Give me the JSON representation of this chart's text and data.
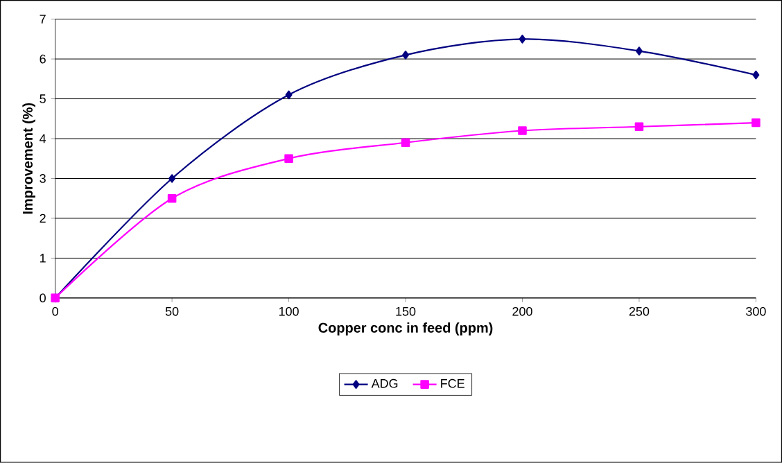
{
  "chart_data": {
    "type": "line",
    "xlabel": "Copper conc in feed (ppm)",
    "ylabel": "Improvement (%)",
    "x": [
      0,
      50,
      100,
      150,
      200,
      250,
      300
    ],
    "series": [
      {
        "name": "ADG",
        "color": "#000080",
        "marker": "diamond",
        "values": [
          0,
          3.0,
          5.1,
          6.1,
          6.5,
          6.2,
          5.6
        ]
      },
      {
        "name": "FCE",
        "color": "#ff00ff",
        "marker": "square",
        "values": [
          0,
          2.5,
          3.5,
          3.9,
          4.2,
          4.3,
          4.4
        ]
      }
    ],
    "xlim": [
      0,
      300
    ],
    "xticks": [
      0,
      50,
      100,
      150,
      200,
      250,
      300
    ],
    "ylim": [
      0,
      7
    ],
    "yticks": [
      0,
      1,
      2,
      3,
      4,
      5,
      6,
      7
    ],
    "grid": "y",
    "legend": "bottom"
  }
}
